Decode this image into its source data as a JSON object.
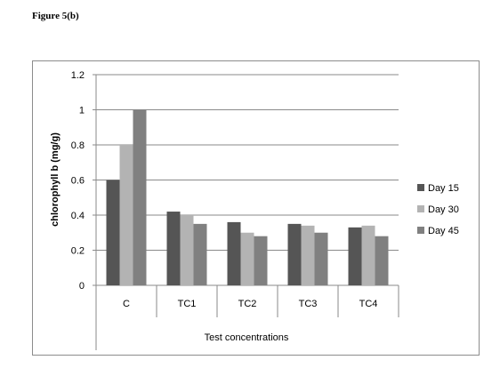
{
  "figure_label": "Figure 5(b)",
  "chart_data": {
    "type": "bar",
    "categories": [
      "C",
      "TC1",
      "TC2",
      "TC3",
      "TC4"
    ],
    "series": [
      {
        "name": "Day 15",
        "values": [
          0.6,
          0.42,
          0.36,
          0.35,
          0.33
        ],
        "color": "#555555"
      },
      {
        "name": "Day 30",
        "values": [
          0.8,
          0.4,
          0.3,
          0.34,
          0.34
        ],
        "color": "#b3b3b3"
      },
      {
        "name": "Day 45",
        "values": [
          1.0,
          0.35,
          0.28,
          0.3,
          0.28
        ],
        "color": "#808080"
      }
    ],
    "xlabel": "Test concentrations",
    "ylabel": "chlorophyll b (mg/g)",
    "ylim": [
      0,
      1.2
    ],
    "yticks": [
      "0",
      "0.2",
      "0.4",
      "0.6",
      "0.8",
      "1",
      "1.2"
    ],
    "grid": true,
    "legend_position": "right"
  }
}
